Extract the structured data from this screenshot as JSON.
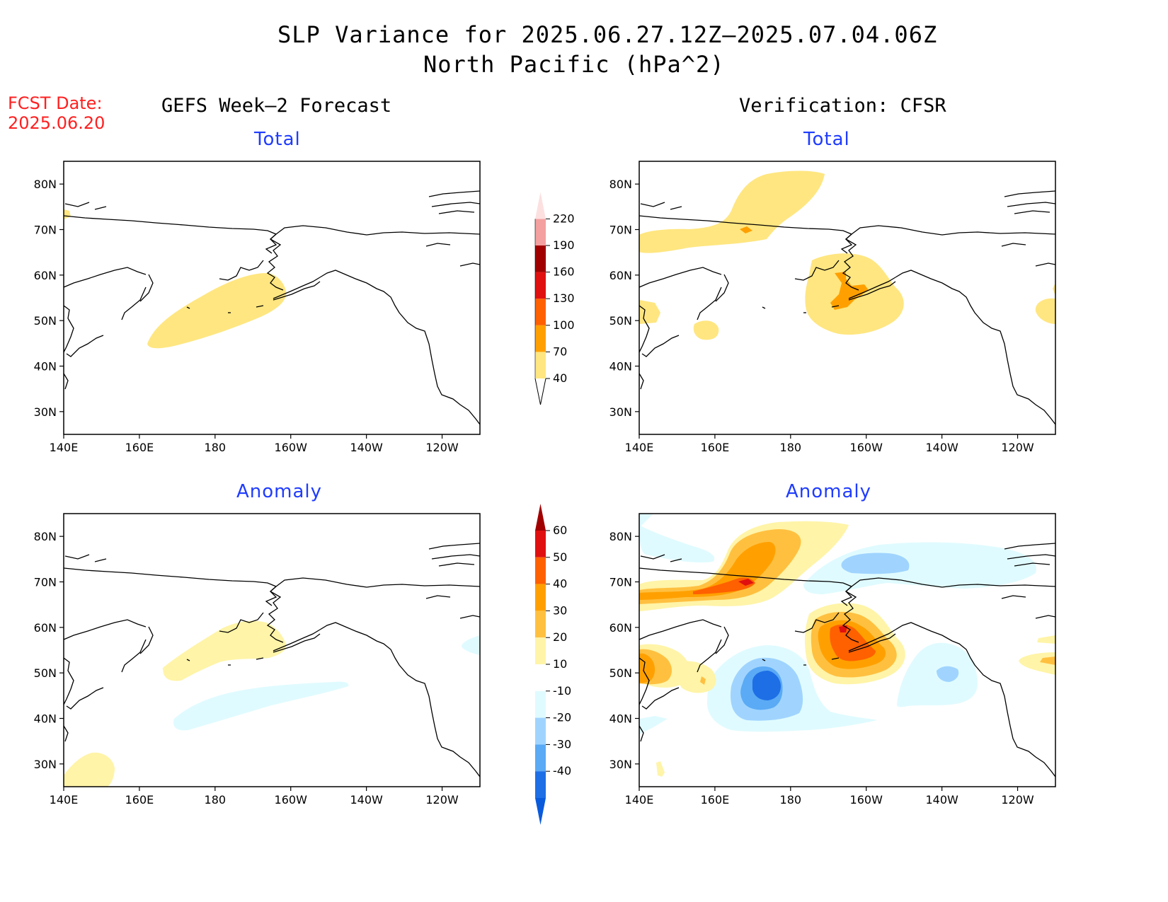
{
  "title": {
    "line1": "SLP Variance for 2025.06.27.12Z–2025.07.04.06Z",
    "line2": "North Pacific (hPa^2)"
  },
  "fcst": {
    "line1": "FCST Date:",
    "line2": "2025.06.20"
  },
  "columns": {
    "left": "GEFS Week–2 Forecast",
    "right": "Verification: CFSR"
  },
  "panels": [
    {
      "id": "gefs-total",
      "subtitle": "Total"
    },
    {
      "id": "cfsr-total",
      "subtitle": "Total"
    },
    {
      "id": "gefs-anomaly",
      "subtitle": "Anomaly"
    },
    {
      "id": "cfsr-anomaly",
      "subtitle": "Anomaly"
    }
  ],
  "axes": {
    "lat_labels": [
      "80N",
      "70N",
      "60N",
      "50N",
      "40N",
      "30N"
    ],
    "lat_values": [
      80,
      70,
      60,
      50,
      40,
      30
    ],
    "lon_labels": [
      "140E",
      "160E",
      "180",
      "160W",
      "140W",
      "120W"
    ],
    "lon_values": [
      140,
      160,
      180,
      200,
      220,
      240
    ],
    "lon_range": [
      140,
      250
    ],
    "lat_range": [
      25,
      85
    ]
  },
  "colorbar_total": {
    "levels": [
      "40",
      "70",
      "100",
      "130",
      "160",
      "190",
      "220"
    ],
    "colors": [
      "#ffe680",
      "#ffa000",
      "#ff6000",
      "#e01010",
      "#a00000",
      "#f4a0a0",
      "#fce0e0"
    ]
  },
  "colorbar_anomaly": {
    "levels": [
      "60",
      "50",
      "40",
      "30",
      "20",
      "10",
      "-10",
      "-20",
      "-30",
      "-40"
    ],
    "colors": [
      "#a00000",
      "#e01010",
      "#ff6000",
      "#ffa000",
      "#ffc040",
      "#fff4a8",
      "#ffffff",
      "#e0fbff",
      "#a0d4ff",
      "#5aaaf5",
      "#1e6ee6",
      "#0a5adc"
    ]
  },
  "palette": {
    "yellow": "#ffe680",
    "pale_yellow": "#fff4a8",
    "orange_light": "#ffc040",
    "orange": "#ffa000",
    "orange_dark": "#ff6000",
    "red": "#e01010",
    "cyan_pale": "#e0fbff",
    "blue_light": "#a0d4ff",
    "blue": "#5aaaf5",
    "blue_dark": "#1e6ee6"
  }
}
